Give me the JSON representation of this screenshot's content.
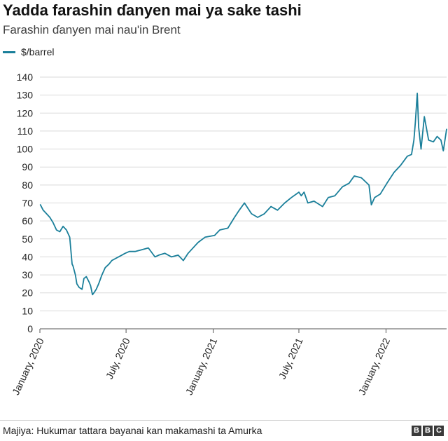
{
  "header": {
    "title": "Yadda farashin ɗanyen mai ya sake tashi",
    "subtitle": "Farashin ɗanyen mai nau'in Brent"
  },
  "legend": {
    "label": "$/barrel",
    "color": "#1a7f9a"
  },
  "footer": {
    "source": "Majiya: Hukumar tattara bayanai kan makamashi ta Amurka",
    "logo": "BBC"
  },
  "chart_data": {
    "type": "line",
    "title": "Yadda farashin ɗanyen mai ya sake tashi",
    "subtitle": "Farashin ɗanyen mai nau'in Brent",
    "xlabel": "",
    "ylabel": "",
    "ylim": [
      0,
      140
    ],
    "xlim": [
      "2020-01-01",
      "2022-05-09"
    ],
    "yticks": [
      0,
      10,
      20,
      30,
      40,
      50,
      60,
      70,
      80,
      90,
      100,
      110,
      120,
      130,
      140
    ],
    "xticks": [
      {
        "label": "January, 2020",
        "date": "2020-01-01"
      },
      {
        "label": "July, 2020",
        "date": "2020-07-01"
      },
      {
        "label": "January, 2021",
        "date": "2021-01-01"
      },
      {
        "label": "July, 2021",
        "date": "2021-07-01"
      },
      {
        "label": "January, 2022",
        "date": "2022-01-01"
      }
    ],
    "grid": true,
    "legend_position": "top-left",
    "series": [
      {
        "name": "$/barrel",
        "color": "#1a7f9a",
        "x": [
          "2020-01-02",
          "2020-01-08",
          "2020-01-15",
          "2020-01-22",
          "2020-01-29",
          "2020-02-05",
          "2020-02-12",
          "2020-02-19",
          "2020-02-26",
          "2020-03-04",
          "2020-03-09",
          "2020-03-11",
          "2020-03-16",
          "2020-03-19",
          "2020-03-24",
          "2020-03-30",
          "2020-04-03",
          "2020-04-08",
          "2020-04-14",
          "2020-04-17",
          "2020-04-21",
          "2020-04-24",
          "2020-04-29",
          "2020-05-04",
          "2020-05-11",
          "2020-05-18",
          "2020-05-26",
          "2020-06-01",
          "2020-06-08",
          "2020-06-15",
          "2020-06-22",
          "2020-06-29",
          "2020-07-08",
          "2020-07-20",
          "2020-08-03",
          "2020-08-17",
          "2020-08-31",
          "2020-09-08",
          "2020-09-21",
          "2020-10-05",
          "2020-10-19",
          "2020-10-30",
          "2020-11-09",
          "2020-11-16",
          "2020-11-30",
          "2020-12-15",
          "2021-01-04",
          "2021-01-15",
          "2021-02-01",
          "2021-02-15",
          "2021-02-25",
          "2021-03-08",
          "2021-03-23",
          "2021-04-05",
          "2021-04-19",
          "2021-05-03",
          "2021-05-17",
          "2021-06-01",
          "2021-06-15",
          "2021-07-01",
          "2021-07-06",
          "2021-07-12",
          "2021-07-20",
          "2021-08-02",
          "2021-08-20",
          "2021-09-01",
          "2021-09-15",
          "2021-10-01",
          "2021-10-15",
          "2021-10-26",
          "2021-11-10",
          "2021-11-26",
          "2021-12-01",
          "2021-12-08",
          "2021-12-20",
          "2022-01-03",
          "2022-01-18",
          "2022-02-01",
          "2022-02-15",
          "2022-02-24",
          "2022-03-01",
          "2022-03-04",
          "2022-03-08",
          "2022-03-11",
          "2022-03-16",
          "2022-03-23",
          "2022-04-01",
          "2022-04-11",
          "2022-04-19",
          "2022-04-27",
          "2022-05-02",
          "2022-05-09"
        ],
        "values": [
          69,
          66,
          64,
          62,
          59,
          55,
          54,
          57,
          55,
          51,
          36,
          35,
          30,
          25,
          23,
          22,
          28,
          29,
          26,
          24,
          19,
          20,
          22,
          25,
          30,
          34,
          36,
          38,
          39,
          40,
          41,
          42,
          43,
          43,
          44,
          45,
          40,
          41,
          42,
          40,
          41,
          38,
          42,
          44,
          48,
          51,
          52,
          55,
          56,
          62,
          66,
          70,
          64,
          62,
          64,
          68,
          66,
          70,
          73,
          76,
          74,
          76,
          70,
          71,
          68,
          73,
          74,
          79,
          81,
          85,
          84,
          80,
          69,
          73,
          75,
          81,
          87,
          91,
          96,
          97,
          105,
          115,
          131,
          112,
          100,
          118,
          105,
          104,
          107,
          105,
          99,
          111
        ]
      }
    ]
  }
}
